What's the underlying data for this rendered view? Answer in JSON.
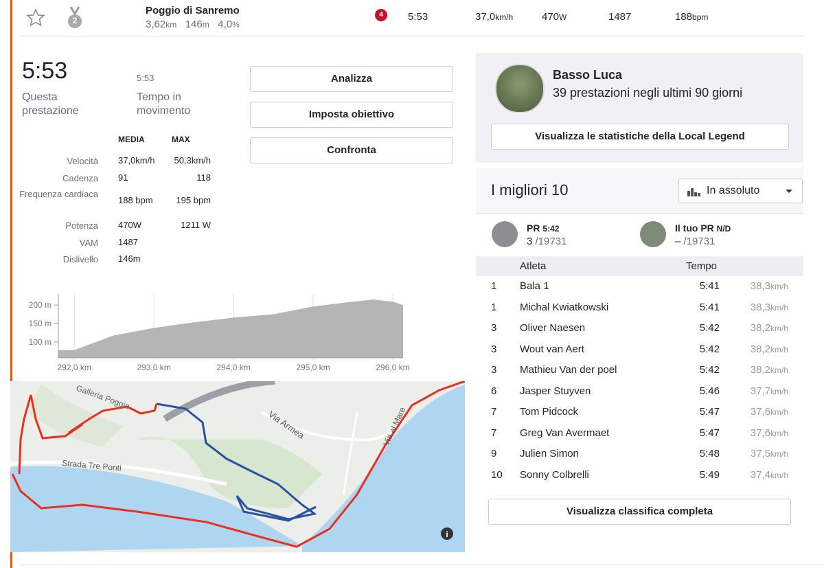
{
  "segment_row": {
    "name": "Poggio di Sanremo",
    "distance": "3,62",
    "distance_unit": "km",
    "elevation": "146",
    "elevation_unit": "m",
    "grade": "4,0",
    "grade_unit": "%",
    "medal": "2",
    "rank_badge": "4",
    "time": "5:53",
    "speed": "37,0",
    "speed_unit": "km/h",
    "power": "470",
    "power_unit": "W",
    "vam": "1487",
    "heart_rate": "188",
    "heart_rate_unit": "bpm"
  },
  "effort": {
    "time": "5:53",
    "time_label": "Questa prestazione",
    "moving_time": "5:53",
    "moving_label": "Tempo in movimento"
  },
  "buttons": [
    "Analizza",
    "Imposta obiettivo",
    "Confronta"
  ],
  "stats": {
    "headers": [
      "MEDIA",
      "MAX"
    ],
    "rows": [
      [
        "Velocità",
        "37,0km/h",
        "50,3km/h"
      ],
      [
        "Cadenza",
        "91",
        "118"
      ],
      [
        "Frequenza cardiaca",
        "188 bpm",
        "195 bpm"
      ],
      [
        "Potenza",
        "470W",
        "1211 W"
      ],
      [
        "VAM",
        "1487"
      ],
      [
        "Dislivello",
        "146m"
      ]
    ]
  },
  "elevation_profile": {
    "type": "area",
    "x": [
      291.8,
      292.0,
      292.5,
      293.0,
      293.5,
      294.0,
      294.5,
      295.0,
      295.5,
      295.75,
      296.0,
      296.13
    ],
    "values": [
      78,
      78,
      118,
      138,
      153,
      166,
      175,
      196,
      209,
      215,
      209,
      200
    ],
    "color": "#b5b5b5",
    "xlim": [
      291.8,
      296.13
    ],
    "ylim": [
      57,
      230
    ],
    "xticks": [
      {
        "value": 292,
        "label": "292,0 km"
      },
      {
        "value": 293,
        "label": "293,0 km"
      },
      {
        "value": 294,
        "label": "294,0 km"
      },
      {
        "value": 295,
        "label": "295,0 km"
      },
      {
        "value": 296,
        "label": "296,0 km"
      }
    ],
    "yticks": [
      {
        "value": 100,
        "label": "100 m"
      },
      {
        "value": 150,
        "label": "150 m"
      },
      {
        "value": 200,
        "label": "200 m"
      }
    ]
  },
  "map": {
    "labels": [
      "Galleria Poggio",
      "Via Armea",
      "Strada Tre Ponti",
      "Via al Mare"
    ]
  },
  "local_legend": {
    "name": "Basso Luca",
    "subtitle": "39 prestazioni negli ultimi 90 giorni",
    "button": "Visualizza le statistiche della Local Legend"
  },
  "leaderboard": {
    "title": "I migliori 10",
    "filter": "In assoluto",
    "pr": {
      "label": "PR",
      "time": "5:42",
      "rank": "3",
      "total": "/19731"
    },
    "your_pr": {
      "label": "Il tuo PR",
      "time": "N/D",
      "rank": "–",
      "total": "/19731"
    },
    "headers": [
      "Atleta",
      "Tempo"
    ],
    "speed_unit": "km/h",
    "rows": [
      [
        "1",
        "Bala 1",
        "5:41",
        "38,3"
      ],
      [
        "1",
        "Michal Kwiatkowski",
        "5:41",
        "38,3"
      ],
      [
        "3",
        "Oliver Naesen",
        "5:42",
        "38,2"
      ],
      [
        "3",
        "Wout van Aert",
        "5:42",
        "38,2"
      ],
      [
        "3",
        "Mathieu Van der poel",
        "5:42",
        "38,2"
      ],
      [
        "6",
        "Jasper Stuyven",
        "5:46",
        "37,7"
      ],
      [
        "7",
        "Tom Pidcock",
        "5:47",
        "37,6"
      ],
      [
        "7",
        "Greg Van Avermaet",
        "5:47",
        "37,6"
      ],
      [
        "9",
        "Julien Simon",
        "5:48",
        "37,5"
      ],
      [
        "10",
        "Sonny Colbrelli",
        "5:49",
        "37,4"
      ]
    ],
    "button": "Visualizza classifica completa"
  }
}
